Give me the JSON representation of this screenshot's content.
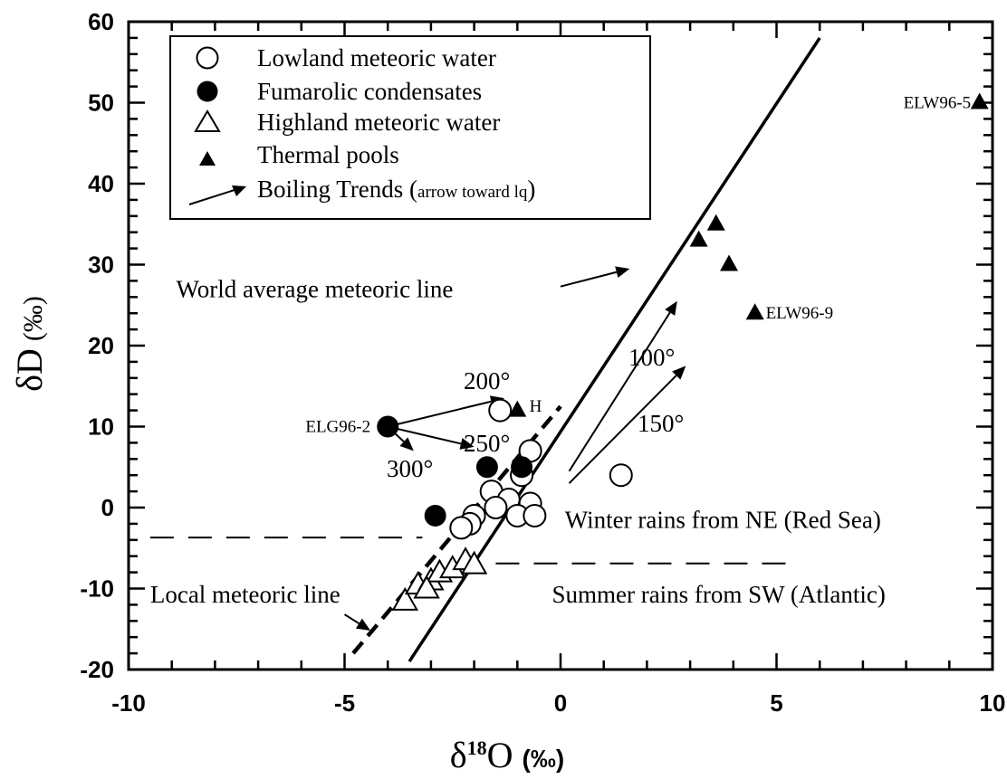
{
  "chart_data": {
    "type": "scatter",
    "xlim": [
      -10,
      10
    ],
    "ylim": [
      -20,
      60
    ],
    "x_ticks": [
      "-10",
      "-5",
      "0",
      "5",
      "10"
    ],
    "y_ticks": [
      "60",
      "50",
      "40",
      "30",
      "20",
      "10",
      "0",
      "-10",
      "-20"
    ],
    "x_ticks_values": [
      -10,
      -5,
      0,
      5,
      10
    ],
    "y_ticks_values": [
      60,
      50,
      40,
      30,
      20,
      10,
      0,
      -10,
      -20
    ],
    "xlabel": {
      "delta": "δ",
      "sup": "18",
      "element": "O",
      "unit": "(‰)"
    },
    "ylabel": {
      "delta": "δ",
      "element": "D",
      "unit": "(‰)"
    },
    "legend": {
      "placement": "top-left",
      "entries": [
        {
          "marker": "open-circle",
          "label": "Lowland meteoric water"
        },
        {
          "marker": "filled-circle",
          "label": "Fumarolic condensates"
        },
        {
          "marker": "open-triangle",
          "label": "Highland meteoric water"
        },
        {
          "marker": "filled-triangle",
          "label": "Thermal pools"
        },
        {
          "marker": "arrow",
          "label": "Boiling Trends (",
          "label_small": "arrow toward lq",
          "label_end": ")"
        }
      ]
    },
    "series": [
      {
        "name": "Lowland meteoric water",
        "marker": "open-circle",
        "points": [
          {
            "x": -1.4,
            "y": 12
          },
          {
            "x": -0.7,
            "y": 7
          },
          {
            "x": -0.9,
            "y": 4
          },
          {
            "x": -1.6,
            "y": 2
          },
          {
            "x": -1.2,
            "y": 1
          },
          {
            "x": -1.5,
            "y": 0
          },
          {
            "x": -0.7,
            "y": 0.5
          },
          {
            "x": -1.0,
            "y": -1
          },
          {
            "x": -0.6,
            "y": -1
          },
          {
            "x": -2.0,
            "y": -1
          },
          {
            "x": -2.1,
            "y": -2
          },
          {
            "x": -2.3,
            "y": -2.5
          },
          {
            "x": 1.4,
            "y": 4
          }
        ]
      },
      {
        "name": "Fumarolic condensates",
        "marker": "filled-circle",
        "points": [
          {
            "x": -4.0,
            "y": 10
          },
          {
            "x": -1.7,
            "y": 5
          },
          {
            "x": -0.9,
            "y": 5
          },
          {
            "x": -2.9,
            "y": -1
          }
        ]
      },
      {
        "name": "Highland meteoric water",
        "marker": "open-triangle",
        "points": [
          {
            "x": -3.6,
            "y": -11.5
          },
          {
            "x": -3.3,
            "y": -9.5
          },
          {
            "x": -3.0,
            "y": -9
          },
          {
            "x": -2.8,
            "y": -8
          },
          {
            "x": -2.5,
            "y": -7.5
          },
          {
            "x": -2.2,
            "y": -6.5
          },
          {
            "x": -2.0,
            "y": -7
          },
          {
            "x": -3.1,
            "y": -10
          }
        ]
      },
      {
        "name": "Thermal pools",
        "marker": "filled-triangle",
        "points": [
          {
            "x": 9.7,
            "y": 50
          },
          {
            "x": 3.6,
            "y": 35
          },
          {
            "x": 3.2,
            "y": 33
          },
          {
            "x": 3.9,
            "y": 30
          },
          {
            "x": 4.5,
            "y": 24
          },
          {
            "x": -1.0,
            "y": 12
          }
        ]
      }
    ],
    "lines": [
      {
        "name": "World average meteoric line",
        "style": "solid",
        "points": [
          [
            -3.5,
            -19
          ],
          [
            6,
            58
          ]
        ]
      },
      {
        "name": "Local meteoric line",
        "style": "dashed",
        "points": [
          [
            -4.8,
            -18
          ],
          [
            0,
            12.5
          ]
        ]
      },
      {
        "name": "Winter rains from NE (Red Sea)",
        "style": "dashed",
        "points": [
          [
            -9.5,
            -3.7
          ],
          [
            -3.2,
            -3.7
          ]
        ]
      },
      {
        "name": "Summer rains from SW (Atlantic)",
        "style": "dashed",
        "points": [
          [
            -1.5,
            -6.9
          ],
          [
            5.5,
            -6.9
          ]
        ]
      }
    ],
    "boiling_arrows": [
      {
        "from": [
          -4.0,
          10
        ],
        "to": [
          -1.3,
          13.5
        ],
        "label": "200°"
      },
      {
        "from": [
          -4.0,
          10
        ],
        "to": [
          -2.0,
          7.5
        ],
        "label": "250°"
      },
      {
        "from": [
          -4.0,
          10
        ],
        "to": [
          -3.4,
          7
        ],
        "label": "300°"
      },
      {
        "from": [
          0.2,
          4.5
        ],
        "to": [
          2.7,
          25.5
        ],
        "label": "100°"
      },
      {
        "from": [
          0.2,
          3
        ],
        "to": [
          2.9,
          17.5
        ],
        "label": "150°"
      }
    ],
    "pointer_arrows": [
      {
        "from": [
          0.0,
          27.3
        ],
        "to": [
          1.6,
          29.5
        ]
      },
      {
        "from": [
          -5.0,
          -13.2
        ],
        "to": [
          -4.4,
          -15.2
        ]
      }
    ],
    "annotations": [
      {
        "text": "ELW96-5",
        "x": 9.5,
        "y": 50,
        "anchor": "end"
      },
      {
        "text": "ELW96-9",
        "x": 4.75,
        "y": 24,
        "anchor": "start"
      },
      {
        "text": "ELG96-2",
        "x": -4.4,
        "y": 10,
        "anchor": "end"
      },
      {
        "text": "H",
        "x": -0.72,
        "y": 12.5,
        "anchor": "start"
      },
      {
        "text": "World average meteoric line",
        "x": -8.9,
        "y": 27,
        "anchor": "start",
        "size": "large"
      },
      {
        "text": "Winter rains from NE (Red Sea)",
        "x": 0.1,
        "y": -1.5,
        "anchor": "start",
        "size": "large"
      },
      {
        "text": "Summer rains from SW (Atlantic)",
        "x": -0.2,
        "y": -10.7,
        "anchor": "start",
        "size": "large"
      },
      {
        "text": "Local meteoric line",
        "x": -9.5,
        "y": -10.7,
        "anchor": "start",
        "size": "large"
      }
    ]
  }
}
